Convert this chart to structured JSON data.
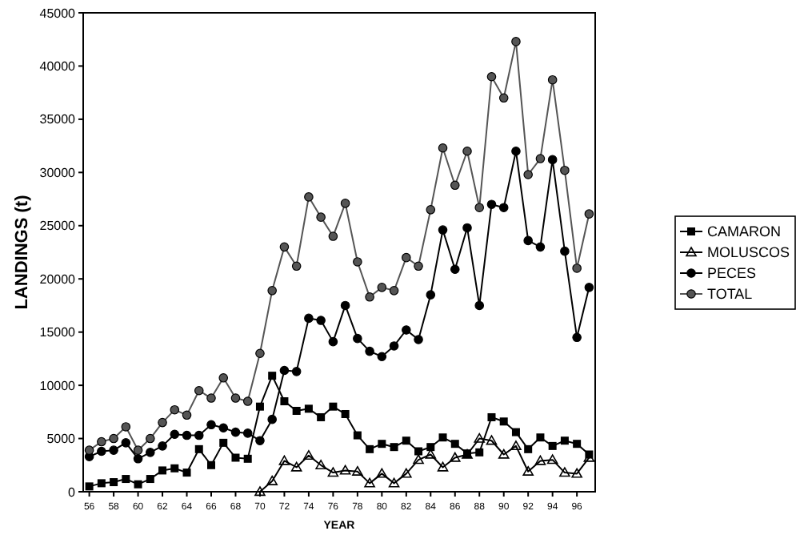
{
  "chart_data": {
    "type": "line",
    "xlabel": "YEAR",
    "ylabel": "LANDINGS (t)",
    "x": [
      56,
      57,
      58,
      59,
      60,
      61,
      62,
      63,
      64,
      65,
      66,
      67,
      68,
      69,
      70,
      71,
      72,
      73,
      74,
      75,
      76,
      77,
      78,
      79,
      80,
      81,
      82,
      83,
      84,
      85,
      86,
      87,
      88,
      89,
      90,
      91,
      92,
      93,
      94,
      95,
      96,
      97
    ],
    "series": [
      {
        "name": "CAMARON",
        "color": "#000000",
        "marker": "square",
        "values": [
          500,
          800,
          900,
          1200,
          700,
          1200,
          2000,
          2200,
          1800,
          4000,
          2500,
          4600,
          3200,
          3100,
          8000,
          10900,
          8500,
          7600,
          7800,
          7000,
          8000,
          7300,
          5300,
          4000,
          4500,
          4200,
          4800,
          3800,
          4200,
          5100,
          4500,
          3600,
          3700,
          7000,
          6600,
          5600,
          4000,
          5100,
          4300,
          4800,
          4500,
          3500
        ]
      },
      {
        "name": "MOLUSCOS",
        "color": "#000000",
        "marker": "triangle",
        "values": [
          null,
          null,
          null,
          null,
          null,
          null,
          null,
          null,
          null,
          null,
          null,
          null,
          null,
          null,
          0,
          1000,
          2900,
          2300,
          3400,
          2500,
          1800,
          2000,
          1900,
          800,
          1700,
          800,
          1700,
          3000,
          3500,
          2300,
          3200,
          3500,
          5000,
          4800,
          3500,
          4300,
          1900,
          2900,
          3000,
          1800,
          1700,
          3200
        ]
      },
      {
        "name": "PECES",
        "color": "#000000",
        "marker": "circle",
        "values": [
          3300,
          3800,
          3900,
          4600,
          3100,
          3700,
          4300,
          5400,
          5300,
          5300,
          6300,
          6000,
          5600,
          5500,
          4800,
          6800,
          11400,
          11300,
          16300,
          16100,
          14100,
          17500,
          14400,
          13200,
          12700,
          13700,
          15200,
          14300,
          18500,
          24600,
          20900,
          24800,
          17500,
          27000,
          26700,
          32000,
          23600,
          23000,
          31200,
          22600,
          14500,
          19200
        ]
      },
      {
        "name": "TOTAL",
        "color": "#555555",
        "marker": "circle",
        "values": [
          3900,
          4700,
          5000,
          6100,
          3900,
          5000,
          6500,
          7700,
          7200,
          9500,
          8800,
          10700,
          8800,
          8500,
          13000,
          18900,
          23000,
          21200,
          27700,
          25800,
          24000,
          27100,
          21600,
          18300,
          19200,
          18900,
          22000,
          21200,
          26500,
          32300,
          28800,
          32000,
          26700,
          39000,
          37000,
          42300,
          29800,
          31300,
          38700,
          30200,
          21000,
          26100
        ]
      }
    ],
    "xlim": [
      55.5,
      97.5
    ],
    "xticks": [
      56,
      58,
      60,
      62,
      64,
      66,
      68,
      70,
      72,
      74,
      76,
      78,
      80,
      82,
      84,
      86,
      88,
      90,
      92,
      94,
      96
    ],
    "ylim": [
      0,
      45000
    ],
    "yticks": [
      0,
      5000,
      10000,
      15000,
      20000,
      25000,
      30000,
      35000,
      40000,
      45000
    ],
    "grid": false,
    "legend": "right",
    "line_style": "solid"
  }
}
